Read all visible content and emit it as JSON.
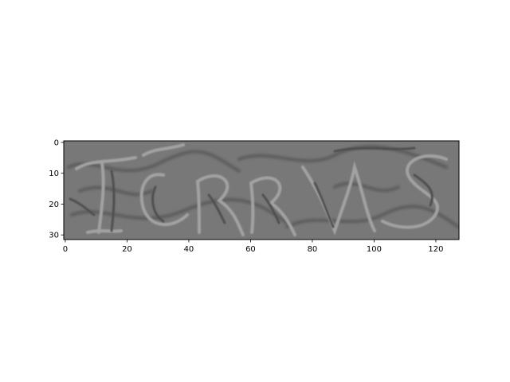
{
  "chart_data": {
    "type": "heatmap",
    "title": "",
    "xlabel": "",
    "ylabel": "",
    "xlim": [
      -0.5,
      127.5
    ],
    "ylim": [
      31.5,
      -0.5
    ],
    "x_ticks": [
      0,
      20,
      40,
      60,
      80,
      100,
      120
    ],
    "x_tick_labels": [
      "0",
      "20",
      "40",
      "60",
      "80",
      "100",
      "120"
    ],
    "y_ticks": [
      0,
      10,
      20,
      30
    ],
    "y_tick_labels": [
      "0",
      "10",
      "20",
      "30"
    ],
    "grid": false,
    "image": {
      "width": 128,
      "height": 32,
      "colormap": "gray",
      "text_content": "ICRRMS"
    }
  }
}
